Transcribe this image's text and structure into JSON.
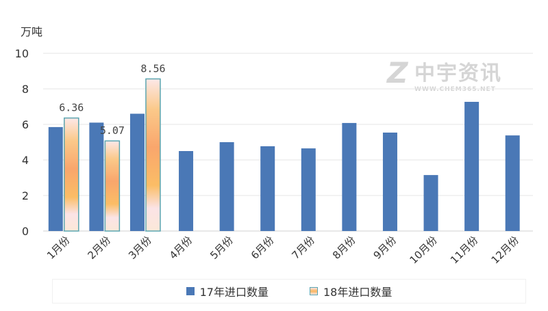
{
  "chart_data": {
    "type": "bar",
    "ylabel": "万吨",
    "ylim": [
      0,
      10
    ],
    "yticks": [
      0,
      2,
      4,
      6,
      8,
      10
    ],
    "grid": true,
    "legend_placement": "bottom",
    "categories": [
      "1月份",
      "2月份",
      "3月份",
      "4月份",
      "5月份",
      "6月份",
      "7月份",
      "8月份",
      "9月份",
      "10月份",
      "11月份",
      "12月份"
    ],
    "series": [
      {
        "name": "17年进口数量",
        "color": "#4a78b6",
        "values": [
          5.85,
          6.1,
          6.6,
          4.5,
          5.0,
          4.77,
          4.65,
          6.08,
          5.54,
          3.15,
          7.27,
          5.38
        ]
      },
      {
        "name": "18年进口数量",
        "color": "#fbb55e",
        "values": [
          6.36,
          5.07,
          8.56,
          null,
          null,
          null,
          null,
          null,
          null,
          null,
          null,
          null
        ],
        "data_labels": [
          "6.36",
          "5.07",
          "8.56"
        ]
      }
    ]
  },
  "watermark": {
    "logo": "Z",
    "name": "中宇资讯",
    "url": "WWW.CHEM365.NET"
  }
}
